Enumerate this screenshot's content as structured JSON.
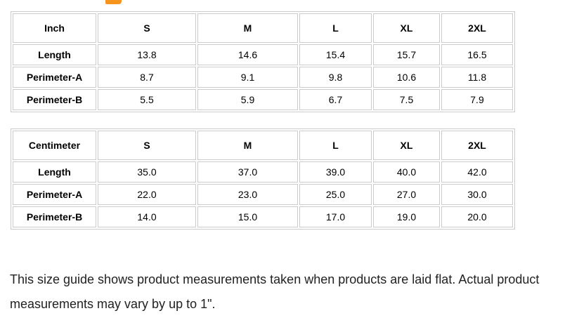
{
  "page_background": "#ffffff",
  "heading_fragment": {
    "description": "bottom sliver of an orange heading letter cut off by the top edge",
    "color": "#f7941e"
  },
  "table_style": {
    "border_color": "#cccccc",
    "text_color": "#000000"
  },
  "tables": [
    {
      "unit_label": "Inch",
      "size_headers": [
        "S",
        "M",
        "L",
        "XL",
        "2XL"
      ],
      "rows": [
        {
          "label": "Length",
          "values": [
            "13.8",
            "14.6",
            "15.4",
            "15.7",
            "16.5"
          ]
        },
        {
          "label": "Perimeter-A",
          "values": [
            "8.7",
            "9.1",
            "9.8",
            "10.6",
            "11.8"
          ]
        },
        {
          "label": "Perimeter-B",
          "values": [
            "5.5",
            "5.9",
            "6.7",
            "7.5",
            "7.9"
          ]
        }
      ]
    },
    {
      "unit_label": "Centimeter",
      "size_headers": [
        "S",
        "M",
        "L",
        "XL",
        "2XL"
      ],
      "rows": [
        {
          "label": "Length",
          "values": [
            "35.0",
            "37.0",
            "39.0",
            "40.0",
            "42.0"
          ]
        },
        {
          "label": "Perimeter-A",
          "values": [
            "22.0",
            "23.0",
            "25.0",
            "27.0",
            "30.0"
          ]
        },
        {
          "label": "Perimeter-B",
          "values": [
            "14.0",
            "15.0",
            "17.0",
            "19.0",
            "20.0"
          ]
        }
      ]
    }
  ],
  "note": {
    "color": "#212121",
    "lines": [
      "This size guide shows product measurements taken when products are laid flat. Actual product",
      "measurements may vary by up to 1\"."
    ]
  }
}
